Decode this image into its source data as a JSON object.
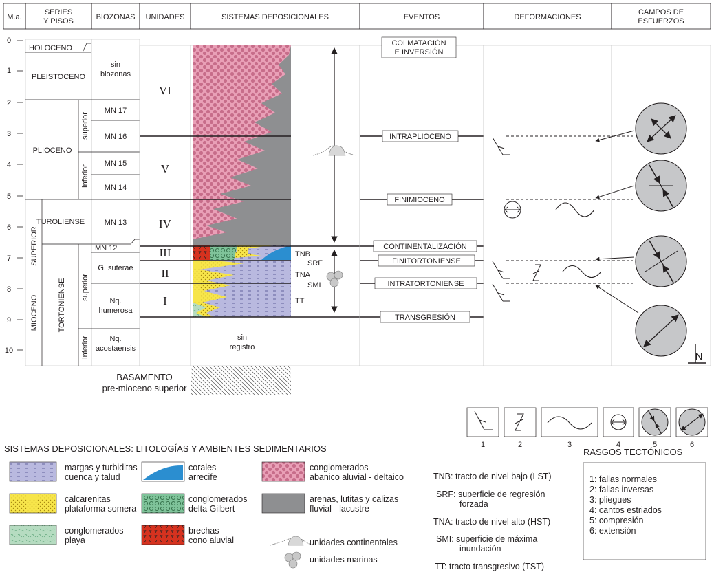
{
  "header": {
    "ma": "M.a.",
    "series_line1": "SERIES",
    "series_line2": "Y PISOS",
    "biozonas": "BIOZONAS",
    "unidades": "UNIDADES",
    "sistemas": "SISTEMAS DEPOSICIONALES",
    "eventos": "EVENTOS",
    "deformaciones": "DEFORMACIONES",
    "campos_line1": "CAMPOS DE",
    "campos_line2": "ESFUERZOS"
  },
  "ages": [
    "0",
    "1",
    "2",
    "3",
    "4",
    "5",
    "6",
    "7",
    "8",
    "9",
    "10"
  ],
  "series": {
    "holoceno": "HOLOCENO",
    "pleistoceno": "PLEISTOCENO",
    "plioceno": "PLIOCENO",
    "plio_superior": "superior",
    "plio_inferior": "inferior",
    "mioceno": "MIOCENO",
    "mio_superior": "SUPERIOR",
    "turoliense": "TUROLIENSE",
    "tortoniense": "TORTONIENSE",
    "tort_superior": "superior",
    "tort_inferior": "inferior"
  },
  "biozonas": {
    "sin_line1": "sin",
    "sin_line2": "biozonas",
    "mn17": "MN 17",
    "mn16": "MN 16",
    "mn15": "MN 15",
    "mn14": "MN 14",
    "mn13": "MN 13",
    "mn12": "MN 12",
    "gsuterae": "G. suterae",
    "nqhum_line1": "Nq.",
    "nqhum_line2": "humerosa",
    "nqacos_line1": "Nq.",
    "nqacos_line2": "acostaensis"
  },
  "unidades": [
    "VI",
    "V",
    "IV",
    "III",
    "II",
    "I"
  ],
  "sistemas": {
    "sin_registro_line1": "sin",
    "sin_registro_line2": "registro",
    "basamento_line1": "BASAMENTO",
    "basamento_line2": "pre-mioceno superior",
    "tracts": [
      "TNB",
      "SRF",
      "TNA",
      "SMI",
      "TT"
    ]
  },
  "eventos": [
    "COLMATACIÓN",
    "E INVERSIÓN",
    "INTRAPLIOCENO",
    "FINIMIOCENO",
    "CONTINENTALIZACIÓN",
    "FINITORTONIENSE",
    "INTRATORTONIENSE",
    "TRANSGRESIÓN"
  ],
  "north": "N",
  "symbol_numbers": [
    "1",
    "2",
    "3",
    "4",
    "5",
    "6"
  ],
  "legend": {
    "title": "SISTEMAS DEPOSICIONALES: LITOLOGÍAS Y AMBIENTES SEDIMENTARIOS",
    "margas_line1": "margas y turbiditas",
    "margas_line2": "cuenca y talud",
    "calcarenitas_line1": "calcarenitas",
    "calcarenitas_line2": "plataforma somera",
    "playa_line1": "conglomerados",
    "playa_line2": "playa",
    "corales_line1": "corales",
    "corales_line2": "arrecife",
    "gilbert_line1": "conglomerados",
    "gilbert_line2": "delta Gilbert",
    "brechas_line1": "brechas",
    "brechas_line2": "cono aluvial",
    "abanico_line1": "conglomerados",
    "abanico_line2": "abanico aluvial - deltaico",
    "fluvial_line1": "arenas, lutitas y calizas",
    "fluvial_line2": "fluvial - lacustre",
    "continentales": "unidades continentales",
    "marinas": "unidades marinas",
    "tnb": "TNB: tracto de nivel bajo (LST)",
    "srf_line1": "SRF: superficie de regresión",
    "srf_line2": "forzada",
    "tna": "TNA: tracto de nivel alto (HST)",
    "smi_line1": "SMI: superficie de máxima",
    "smi_line2": "inundación",
    "tt": "TT: tracto transgresivo (TST)"
  },
  "rasgos": {
    "title": "RASGOS TECTÓNICOS",
    "items": [
      "1: fallas normales",
      "2: fallas inversas",
      "3: pliegues",
      "4: cantos estriados",
      "5: compresión",
      "6: extensión"
    ]
  },
  "colors": {
    "pink": "#e9a0b7",
    "gray": "#8e8f91",
    "lavender": "#b9b9df",
    "yellow": "#f7e54a",
    "mint": "#b6dcc1",
    "green": "#7fc39a",
    "red": "#d6321f",
    "blue": "#2b8ed0"
  }
}
